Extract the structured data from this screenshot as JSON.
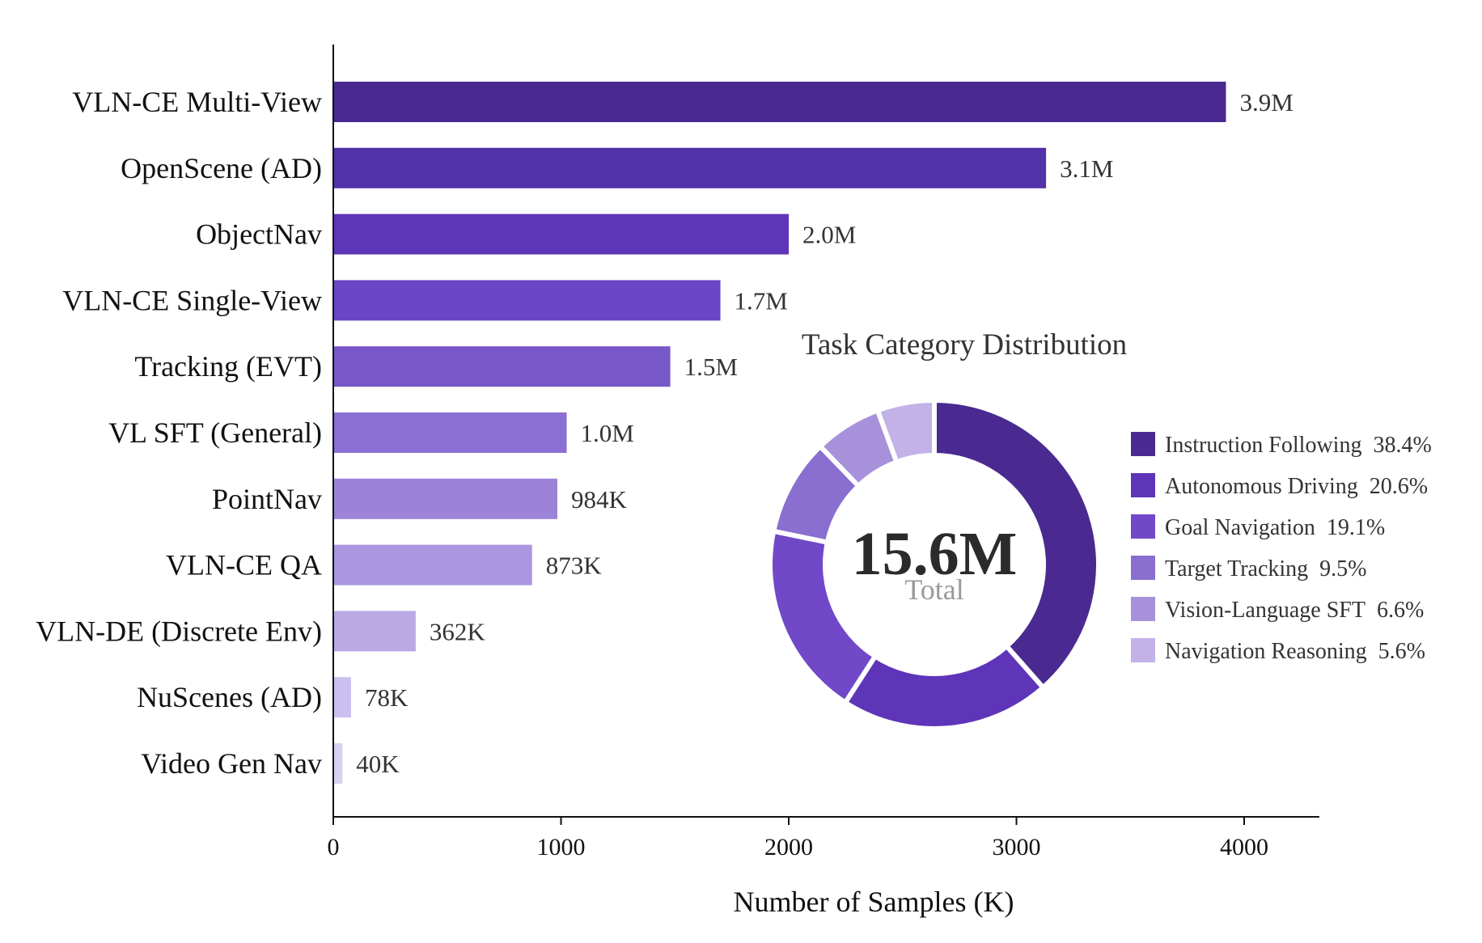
{
  "chart_data": [
    {
      "type": "bar",
      "orientation": "horizontal",
      "categories": [
        "VLN-CE Multi-View",
        "OpenScene (AD)",
        "ObjectNav",
        "VLN-CE Single-View",
        "Tracking (EVT)",
        "VL SFT (General)",
        "PointNav",
        "VLN-CE QA",
        "VLN-DE (Discrete Env)",
        "NuScenes (AD)",
        "Video Gen Nav"
      ],
      "values": [
        3920,
        3130,
        2000,
        1700,
        1480,
        1025,
        984,
        873,
        362,
        78,
        40
      ],
      "value_labels": [
        "3.9M",
        "3.1M",
        "2.0M",
        "1.7M",
        "1.5M",
        "1.0M",
        "984K",
        "873K",
        "362K",
        "78K",
        "40K"
      ],
      "colors": [
        "#4a2a91",
        "#5232a8",
        "#5e35b8",
        "#6a45c6",
        "#7857c9",
        "#8b6fd2",
        "#9c83d9",
        "#ab97e0",
        "#bba9e6",
        "#cbbfef",
        "#d9d1f3"
      ],
      "xlabel": "Number of Samples (K)",
      "ylabel": "",
      "xlim": [
        0,
        4330
      ],
      "xticks": [
        0,
        1000,
        2000,
        3000,
        4000
      ],
      "grid": false
    },
    {
      "type": "pie",
      "variant": "donut",
      "title": "Task Category Distribution",
      "center_text": "15.6M",
      "center_subtext": "Total",
      "labels": [
        "Instruction Following",
        "Autonomous Driving",
        "Goal Navigation",
        "Target Tracking",
        "Vision-Language SFT",
        "Navigation Reasoning"
      ],
      "values": [
        38.4,
        20.6,
        19.1,
        9.5,
        6.6,
        5.6
      ],
      "value_labels": [
        "38.4%",
        "20.6%",
        "19.1%",
        "9.5%",
        "6.6%",
        "5.6%"
      ],
      "colors": [
        "#4a2a91",
        "#5e35b8",
        "#7048c8",
        "#8a6ed0",
        "#a891db",
        "#c2b2e8"
      ],
      "legend_position": "right"
    }
  ]
}
